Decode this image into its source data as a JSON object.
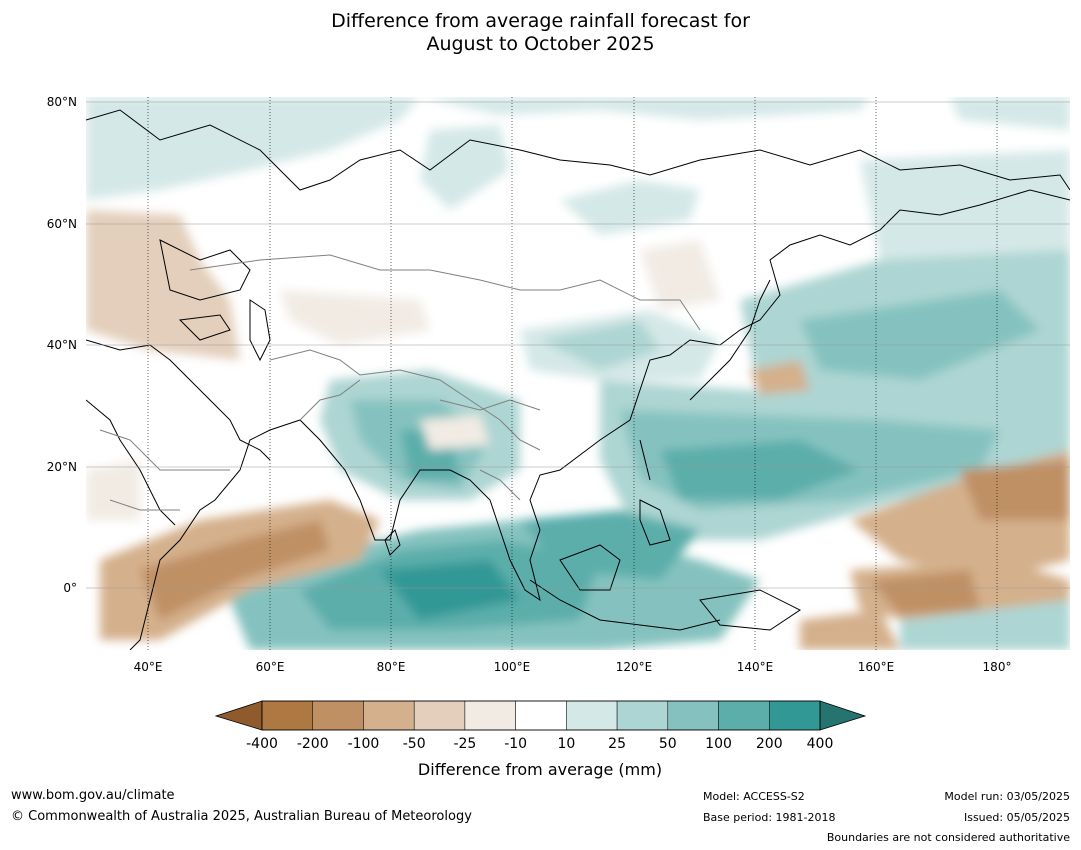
{
  "title": {
    "line1": "Difference from average rainfall forecast for",
    "line2": "August to October 2025"
  },
  "lat_labels": [
    "80°N",
    "60°N",
    "40°N",
    "20°N",
    "0°"
  ],
  "lon_labels": [
    "40°E",
    "60°E",
    "80°E",
    "100°E",
    "120°E",
    "140°E",
    "160°E",
    "180°"
  ],
  "legend": {
    "title": "Difference from average (mm)",
    "tick_labels": [
      "-400",
      "-200",
      "-100",
      "-50",
      "-25",
      "-10",
      "10",
      "25",
      "50",
      "100",
      "200",
      "400"
    ],
    "colors": [
      "#8f5a2c",
      "#ad7841",
      "#c09065",
      "#d4b08c",
      "#e3cfbb",
      "#f1ebe4",
      "#ffffff",
      "#d4e8e7",
      "#add5d3",
      "#85c2bf",
      "#5caeab",
      "#329895",
      "#26746f"
    ]
  },
  "footer": {
    "website": "www.bom.gov.au/climate",
    "copyright": "© Commonwealth of Australia 2025, Australian Bureau of Meteorology",
    "model": "Model: ACCESS-S2",
    "base_period": "Base period: 1981-2018",
    "model_run": "Model run: 03/05/2025",
    "issued": "Issued: 05/05/2025",
    "disclaimer": "Boundaries are not considered authoritative"
  }
}
